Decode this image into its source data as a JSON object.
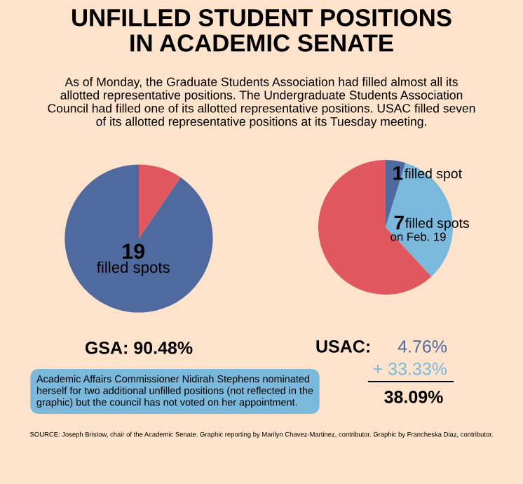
{
  "chart_data": [
    {
      "type": "pie",
      "title": "UNFILLED STUDENT POSITIONS\nIN ACADEMIC SENATE",
      "subtitle": "As of Monday, the Graduate Students Association had filled almost all its\nallotted representative positions. The Undergraduate Students Association\nCouncil had filled one of its allotted representative positions. USAC filled seven\nof its allotted representative positions at its Tuesday meeting.",
      "categories": [
        null,
        "19\nfilled spots"
      ],
      "values": [
        9.52,
        90.48
      ],
      "colors": [
        "#e0575e",
        "#4f6a9f"
      ],
      "annotations": [
        "GSA: 90.48%",
        "Academic Affairs Commissioner Nidirah Stephens nominated\nherself for two additional unfilled positions (not reflected in the\ngraphic) but the council has not voted on her appointment.",
        "SOURCE: Joseph Bristow, chair of the Academic Senate. Graphic reporting by Marilyn Chavez-Martinez, contributor. Graphic by Francheska Diaz, contributor."
      ]
    },
    {
      "type": "pie",
      "categories": [
        "1 filled spot",
        "7 filled spots\non Feb. 19",
        null
      ],
      "values": [
        4.76,
        33.33,
        61.91
      ],
      "colors": [
        "#4f6a9f",
        "#7ab8dc",
        "#e0575e"
      ],
      "annotations": [
        "USAC:",
        "4.76%",
        "+ 33.33%",
        "38.09%"
      ]
    }
  ]
}
